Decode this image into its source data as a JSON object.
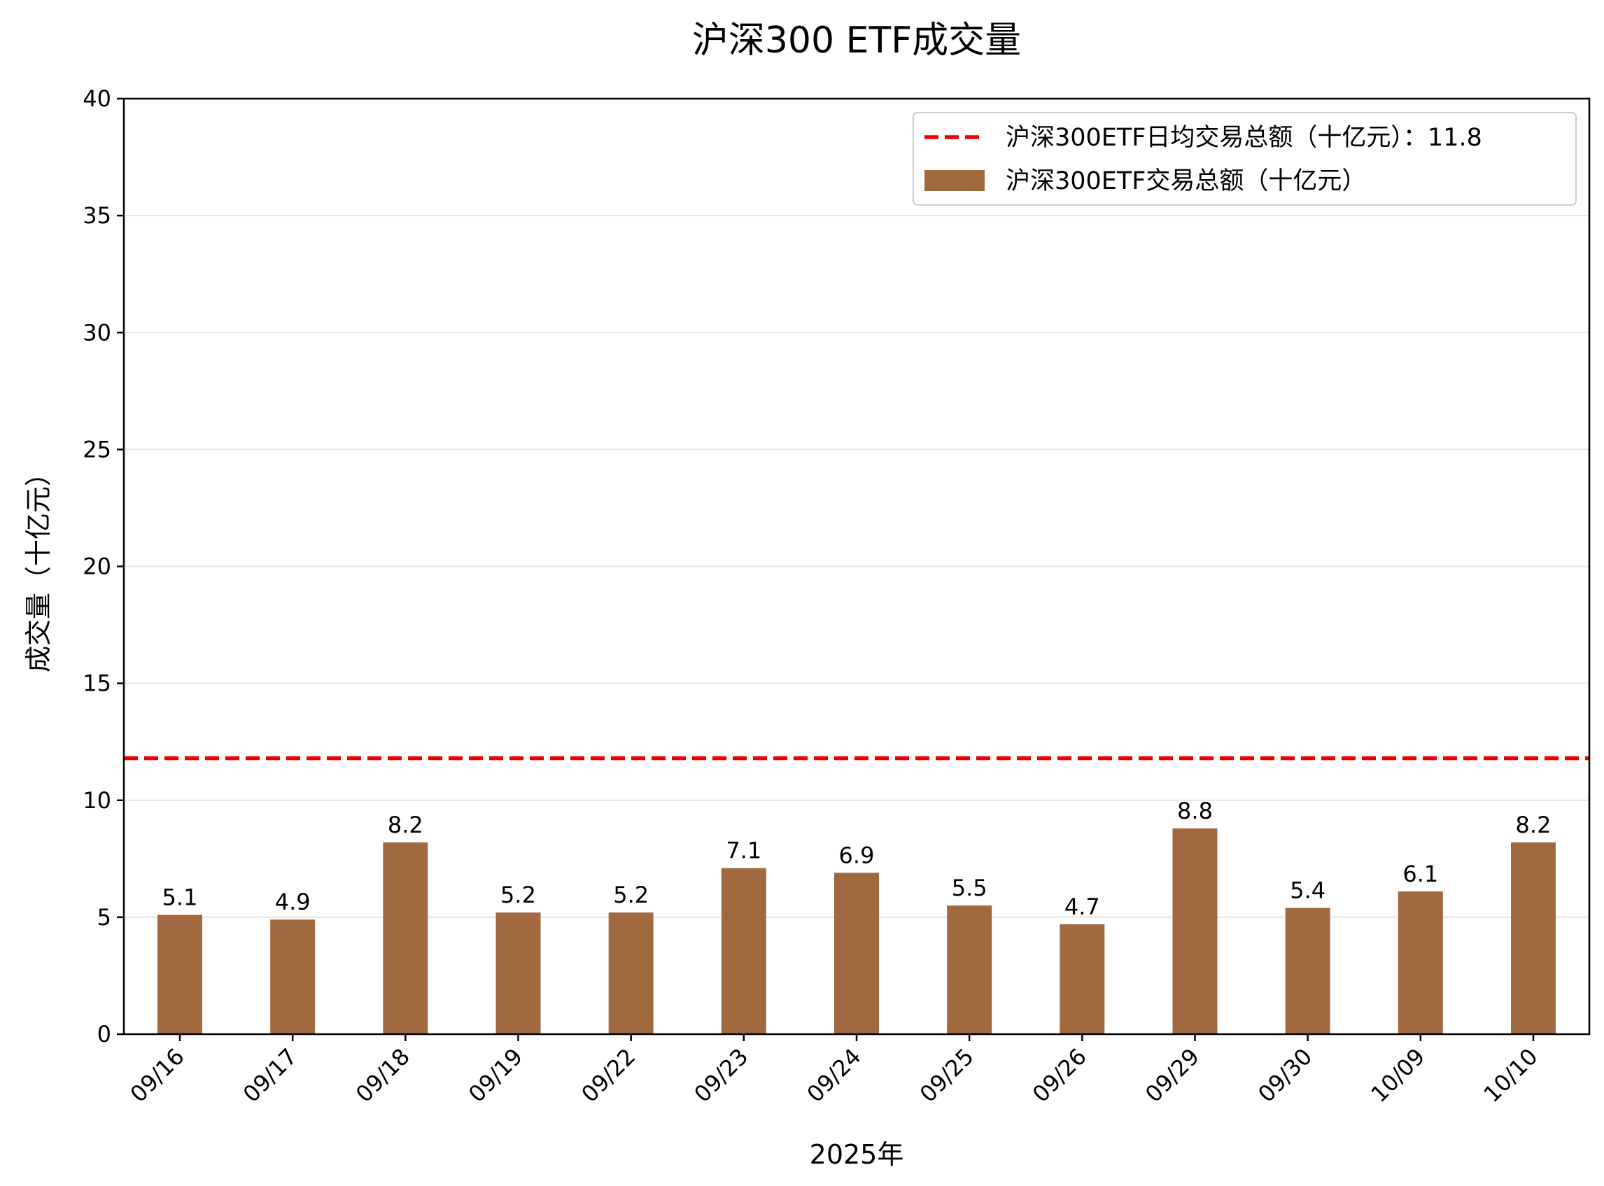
{
  "chart_data": {
    "type": "bar",
    "title": "沪深300 ETF成交量",
    "xlabel": "2025年",
    "ylabel": "成交量（十亿元）",
    "categories": [
      "09/16",
      "09/17",
      "09/18",
      "09/19",
      "09/22",
      "09/23",
      "09/24",
      "09/25",
      "09/26",
      "09/29",
      "09/30",
      "10/09",
      "10/10"
    ],
    "series": [
      {
        "name": "沪深300ETF交易总额（十亿元）",
        "color": "#a0693f",
        "values": [
          5.1,
          4.9,
          8.2,
          5.2,
          5.2,
          7.1,
          6.9,
          5.5,
          4.7,
          8.8,
          5.4,
          6.1,
          8.2
        ],
        "labels": [
          "5.1",
          "4.9",
          "8.2",
          "5.2",
          "5.2",
          "7.1",
          "6.9",
          "5.5",
          "4.7",
          "8.8",
          "5.4",
          "6.1",
          "8.2"
        ]
      }
    ],
    "reference_line": {
      "name": "沪深300ETF日均交易总额（十亿元）：11.8",
      "value": 11.8,
      "color": "#ee0000",
      "style": "dashed"
    },
    "ylim": [
      0,
      40
    ],
    "yticks": [
      "0",
      "5",
      "10",
      "15",
      "20",
      "25",
      "30",
      "35",
      "40"
    ],
    "grid": "horizontal",
    "legend_position": "top-right"
  }
}
